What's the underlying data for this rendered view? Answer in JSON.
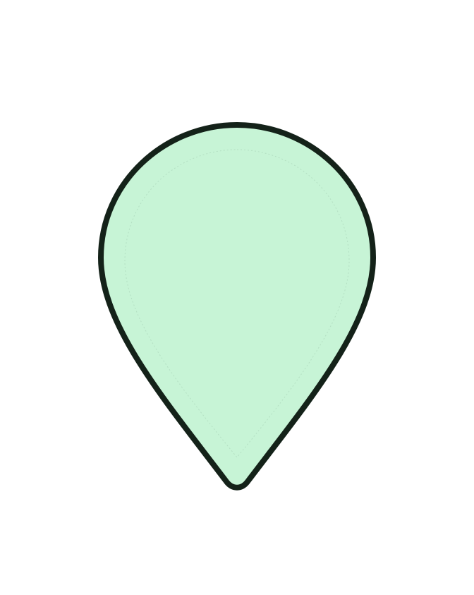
{
  "shape": {
    "kind": "map-pin-icon",
    "fill_color": "#c7f4d6",
    "outline_color": "#142219",
    "inner_guide_color": "#b4dfc3",
    "background_color": "#ffffff"
  }
}
